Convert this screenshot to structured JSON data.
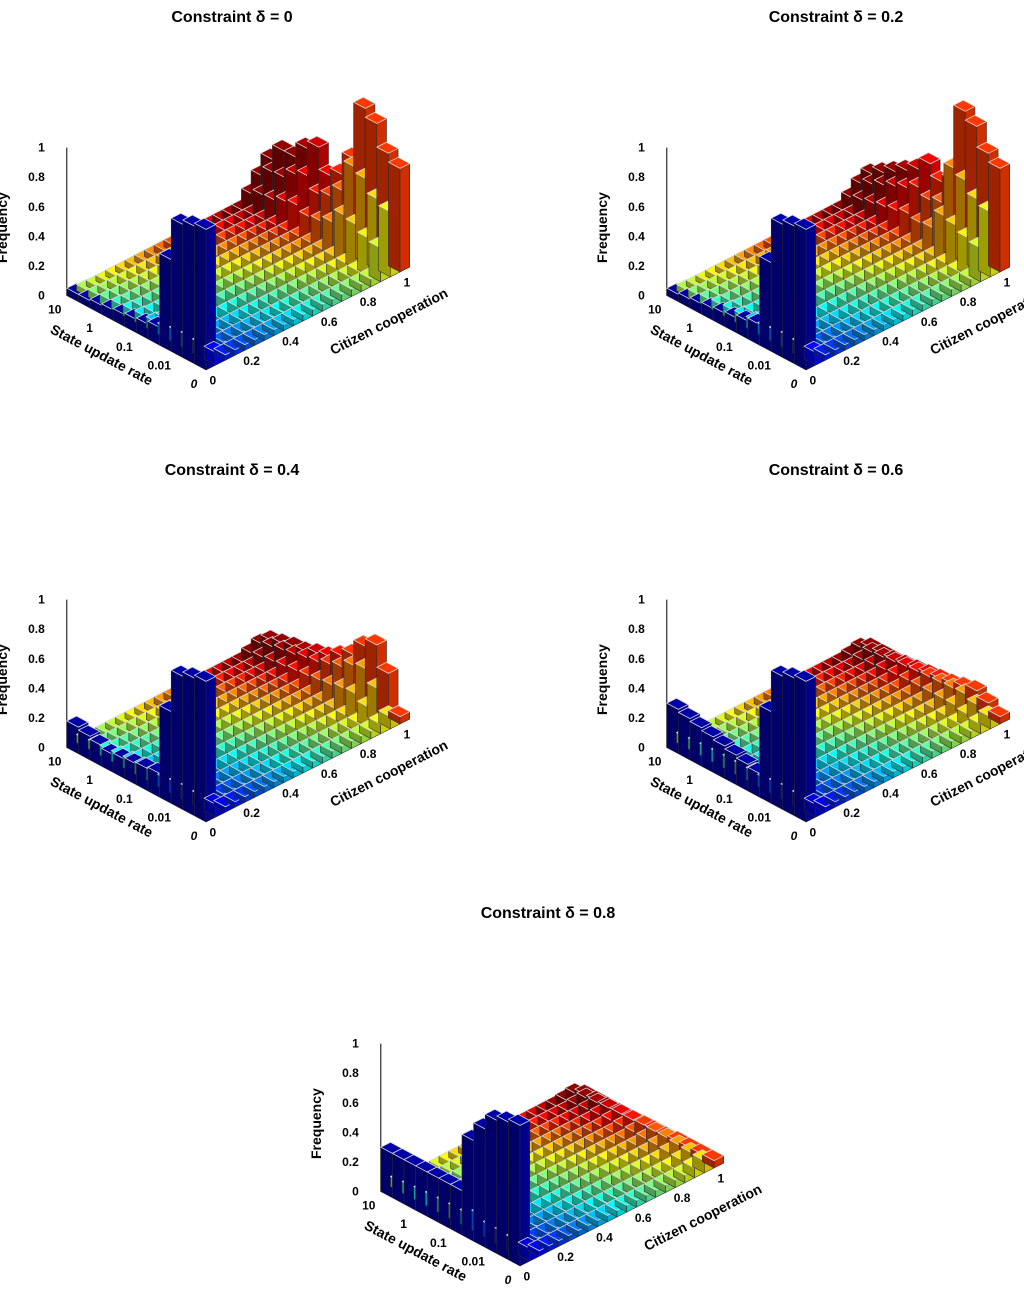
{
  "chart_data": [
    {
      "type": "bar3d",
      "title": "Constraint δ = 0",
      "xlabel": "Citizen cooperation",
      "ylabel": "State update rate",
      "zlabel": "Frequency",
      "x_ticks": [
        "0",
        "0.2",
        "0.4",
        "0.6",
        "0.8",
        "1"
      ],
      "y_ticks": [
        "10",
        "1",
        "0.1",
        "0.01",
        "0"
      ],
      "z_ticks": [
        "0",
        "0.2",
        "0.4",
        "0.6",
        "0.8",
        "1"
      ],
      "zlim": [
        0,
        1
      ],
      "rows": 12,
      "cols": 21,
      "ridge_heights": [
        0.95,
        0.93,
        0.9,
        0.62,
        0.12,
        0.1,
        0.09,
        0.08,
        0.07,
        0.06,
        0.05,
        0.05
      ],
      "edge_heights": [
        0.7,
        0.76,
        0.92,
        0.98,
        0.6,
        0.45,
        0.4,
        0.55,
        0.5,
        0.4,
        0.4,
        0.3
      ]
    },
    {
      "type": "bar3d",
      "title": "Constraint δ = 0.2",
      "xlabel": "Citizen cooperation",
      "ylabel": "State update rate",
      "zlabel": "Frequency",
      "x_ticks": [
        "0",
        "0.2",
        "0.4",
        "0.6",
        "0.8",
        "1"
      ],
      "y_ticks": [
        "10",
        "1",
        "0.1",
        "0.01",
        "0"
      ],
      "z_ticks": [
        "0",
        "0.2",
        "0.4",
        "0.6",
        "0.8",
        "1"
      ],
      "zlim": [
        0,
        1
      ],
      "rows": 12,
      "cols": 21,
      "ridge_heights": [
        0.95,
        0.93,
        0.9,
        0.6,
        0.14,
        0.12,
        0.1,
        0.09,
        0.08,
        0.07,
        0.06,
        0.05
      ],
      "edge_heights": [
        0.7,
        0.76,
        0.9,
        0.96,
        0.45,
        0.4,
        0.48,
        0.4,
        0.35,
        0.3,
        0.25,
        0.2
      ]
    },
    {
      "type": "bar3d",
      "title": "Constraint δ = 0.4",
      "xlabel": "Citizen cooperation",
      "ylabel": "State update rate",
      "zlabel": "Frequency",
      "x_ticks": [
        "0",
        "0.2",
        "0.4",
        "0.6",
        "0.8",
        "1"
      ],
      "y_ticks": [
        "10",
        "1",
        "0.1",
        "0.01",
        "0"
      ],
      "z_ticks": [
        "0",
        "0.2",
        "0.4",
        "0.6",
        "0.8",
        "1"
      ],
      "zlim": [
        0,
        1
      ],
      "rows": 12,
      "cols": 21,
      "ridge_heights": [
        0.95,
        0.93,
        0.9,
        0.62,
        0.16,
        0.15,
        0.14,
        0.13,
        0.12,
        0.14,
        0.16,
        0.18
      ],
      "edge_heights": [
        0.05,
        0.3,
        0.45,
        0.4,
        0.3,
        0.25,
        0.2,
        0.18,
        0.15,
        0.14,
        0.12,
        0.1
      ]
    },
    {
      "type": "bar3d",
      "title": "Constraint δ = 0.6",
      "xlabel": "Citizen cooperation",
      "ylabel": "State update rate",
      "zlabel": "Frequency",
      "x_ticks": [
        "0",
        "0.2",
        "0.4",
        "0.6",
        "0.8",
        "1"
      ],
      "y_ticks": [
        "10",
        "1",
        "0.1",
        "0.01",
        "0"
      ],
      "z_ticks": [
        "0",
        "0.2",
        "0.4",
        "0.6",
        "0.8",
        "1"
      ],
      "zlim": [
        0,
        1
      ],
      "rows": 12,
      "cols": 21,
      "ridge_heights": [
        0.95,
        0.93,
        0.9,
        0.62,
        0.16,
        0.18,
        0.2,
        0.22,
        0.24,
        0.26,
        0.28,
        0.3
      ],
      "edge_heights": [
        0.05,
        0.1,
        0.14,
        0.12,
        0.1,
        0.09,
        0.08,
        0.07,
        0.06,
        0.05,
        0.05,
        0.05
      ]
    },
    {
      "type": "bar3d",
      "title": "Constraint δ = 0.8",
      "xlabel": "Citizen cooperation",
      "ylabel": "State update rate",
      "zlabel": "Frequency",
      "x_ticks": [
        "0",
        "0.2",
        "0.4",
        "0.6",
        "0.8",
        "1"
      ],
      "y_ticks": [
        "10",
        "1",
        "0.1",
        "0.01",
        "0"
      ],
      "z_ticks": [
        "0",
        "0.2",
        "0.4",
        "0.6",
        "0.8",
        "1"
      ],
      "zlim": [
        0,
        1
      ],
      "rows": 12,
      "cols": 21,
      "ridge_heights": [
        0.95,
        0.93,
        0.9,
        0.8,
        0.68,
        0.3,
        0.3,
        0.3,
        0.3,
        0.3,
        0.3,
        0.3
      ],
      "edge_heights": [
        0.05,
        0.05,
        0.05,
        0.05,
        0.04,
        0.04,
        0.03,
        0.03,
        0.03,
        0.03,
        0.03,
        0.03
      ]
    }
  ]
}
